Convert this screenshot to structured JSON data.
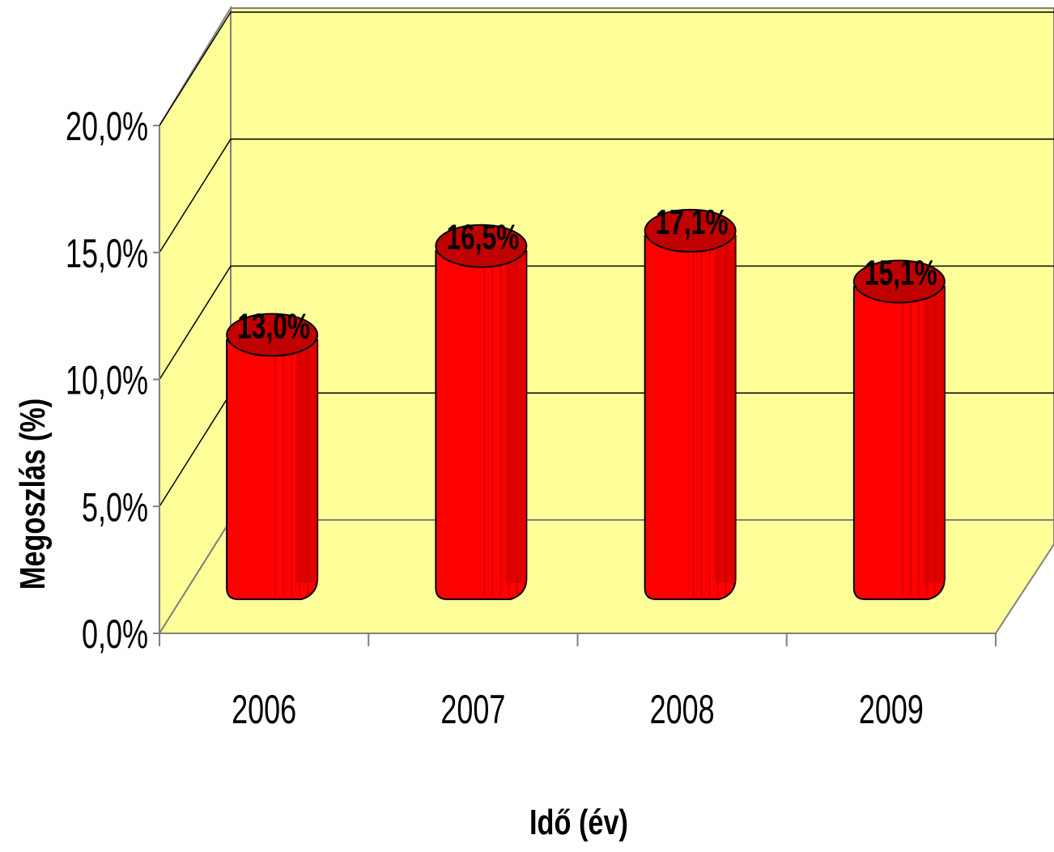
{
  "chart_data": {
    "type": "bar",
    "categories": [
      "2006",
      "2007",
      "2008",
      "2009"
    ],
    "values": [
      13.0,
      16.5,
      17.1,
      15.1
    ],
    "data_labels": [
      "13,0%",
      "16,5%",
      "17,1%",
      "15,1%"
    ],
    "y_ticks": [
      "0,0%",
      "5,0%",
      "10,0%",
      "15,0%",
      "20,0%"
    ],
    "ylim": [
      0,
      20
    ],
    "xlabel": "Idő (év)",
    "ylabel": "Megoszlás (%)",
    "grid": true,
    "style": "3d-cylinder",
    "colors": {
      "wall": "#ffff99",
      "bar_front": "#ff0000",
      "bar_side": "#cc0000",
      "bar_top": "#c00000"
    }
  }
}
